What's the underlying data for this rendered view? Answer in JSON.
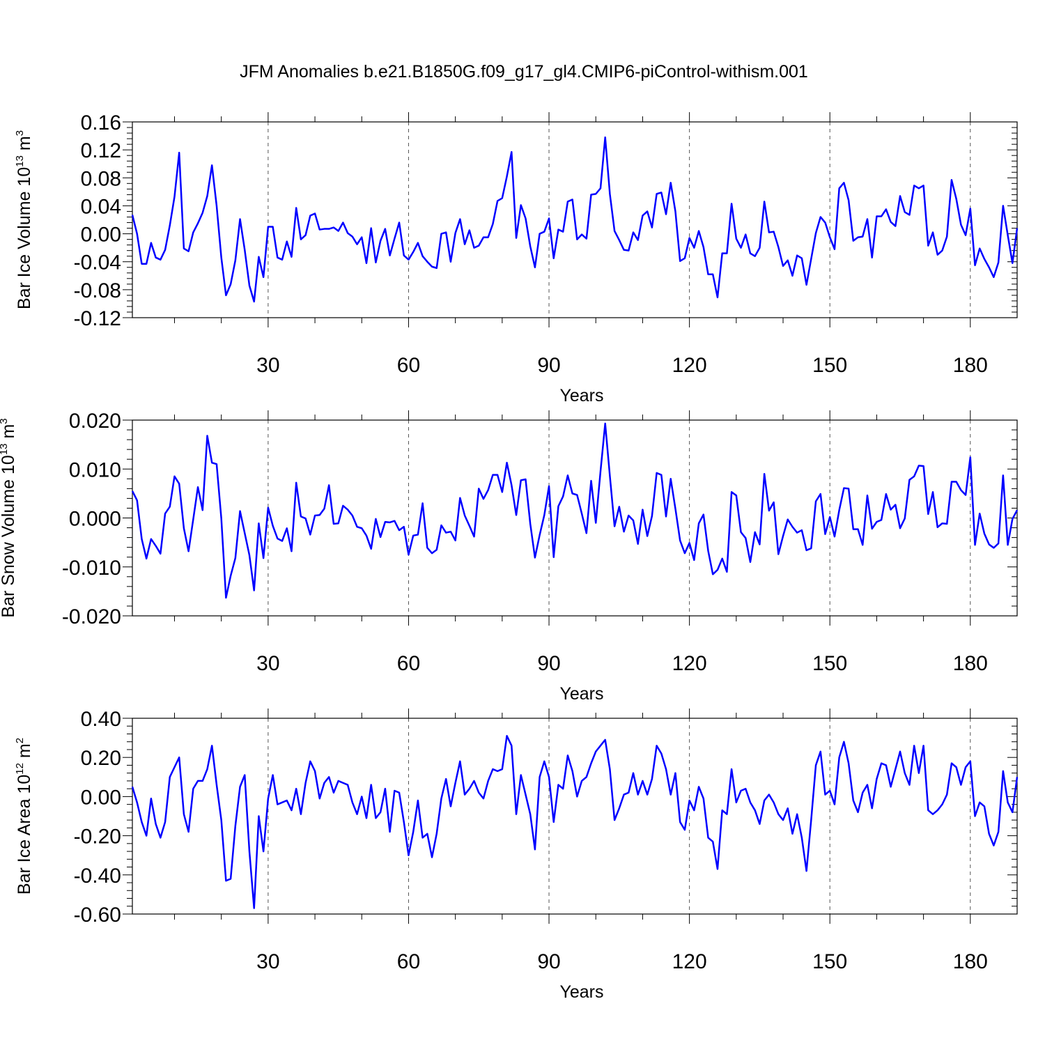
{
  "figure_title": "JFM Anomalies b.e21.B1850G.f09_g17_gl4.CMIP6-piControl-withism.001",
  "colors": {
    "series": "#0000ff"
  },
  "chart_data": [
    {
      "type": "line",
      "panel": "ice-volume",
      "xlabel": "Years",
      "ylabel": "Bar Ice Volume",
      "yunit_base": "10",
      "yunit_exp": "13",
      "yunit_symbol": "m",
      "yunit_symbol_exp": "3",
      "xlim": [
        1,
        190
      ],
      "ylim": [
        -0.12,
        0.16
      ],
      "xticks": [
        30,
        60,
        90,
        120,
        150,
        180
      ],
      "xtick_labels": [
        "30",
        "60",
        "90",
        "120",
        "150",
        "180"
      ],
      "yticks": [
        -0.12,
        -0.08,
        -0.04,
        0.0,
        0.04,
        0.08,
        0.12,
        0.16
      ],
      "ytick_labels": [
        "-0.12",
        "-0.08",
        "-0.04",
        "0.00",
        "0.04",
        "0.08",
        "0.12",
        "0.16"
      ],
      "grid": "dashed vertical at x ticks",
      "series": [
        {
          "name": "Bar Ice Volume",
          "values": [
            0.027,
            0.0,
            -0.043,
            -0.043,
            -0.013,
            -0.034,
            -0.037,
            -0.023,
            0.012,
            0.053,
            0.116,
            -0.021,
            -0.025,
            0.002,
            0.015,
            0.03,
            0.054,
            0.098,
            0.04,
            -0.034,
            -0.088,
            -0.072,
            -0.038,
            0.021,
            -0.023,
            -0.074,
            -0.097,
            -0.033,
            -0.062,
            0.01,
            0.01,
            -0.034,
            -0.037,
            -0.011,
            -0.033,
            0.037,
            -0.008,
            -0.002,
            0.026,
            0.029,
            0.006,
            0.007,
            0.007,
            0.009,
            0.004,
            0.016,
            0.001,
            -0.004,
            -0.015,
            -0.005,
            -0.042,
            0.008,
            -0.041,
            -0.01,
            0.007,
            -0.031,
            -0.007,
            0.016,
            -0.031,
            -0.037,
            -0.026,
            -0.013,
            -0.032,
            -0.04,
            -0.047,
            -0.049,
            0.0,
            0.002,
            -0.04,
            0.001,
            0.021,
            -0.015,
            0.005,
            -0.02,
            -0.017,
            -0.005,
            -0.005,
            0.014,
            0.047,
            0.051,
            0.082,
            0.117,
            -0.006,
            0.041,
            0.022,
            -0.018,
            -0.048,
            0.0,
            0.003,
            0.022,
            -0.035,
            0.006,
            0.003,
            0.046,
            0.049,
            -0.008,
            -0.001,
            -0.007,
            0.056,
            0.057,
            0.065,
            0.138,
            0.057,
            0.004,
            -0.009,
            -0.023,
            -0.024,
            0.002,
            -0.009,
            0.026,
            0.032,
            0.009,
            0.057,
            0.059,
            0.028,
            0.073,
            0.032,
            -0.039,
            -0.035,
            -0.006,
            -0.02,
            0.004,
            -0.019,
            -0.058,
            -0.058,
            -0.091,
            -0.028,
            -0.028,
            0.043,
            -0.007,
            -0.02,
            -0.001,
            -0.028,
            -0.032,
            -0.02,
            0.046,
            0.002,
            0.003,
            -0.019,
            -0.046,
            -0.038,
            -0.06,
            -0.031,
            -0.035,
            -0.073,
            -0.036,
            0.001,
            0.024,
            0.016,
            -0.005,
            -0.022,
            0.065,
            0.073,
            0.048,
            -0.01,
            -0.005,
            -0.004,
            0.021,
            -0.034,
            0.025,
            0.025,
            0.035,
            0.017,
            0.011,
            0.054,
            0.031,
            0.027,
            0.069,
            0.065,
            0.069,
            -0.017,
            0.002,
            -0.03,
            -0.024,
            -0.004,
            0.077,
            0.05,
            0.013,
            -0.002,
            0.036,
            -0.045,
            -0.021,
            -0.036,
            -0.048,
            -0.062,
            -0.041,
            0.04,
            -0.002,
            -0.042,
            0.008
          ]
        }
      ]
    },
    {
      "type": "line",
      "panel": "snow-volume",
      "xlabel": "Years",
      "ylabel": "Bar Snow Volume",
      "yunit_base": "10",
      "yunit_exp": "13",
      "yunit_symbol": "m",
      "yunit_symbol_exp": "3",
      "xlim": [
        1,
        190
      ],
      "ylim": [
        -0.02,
        0.02
      ],
      "xticks": [
        30,
        60,
        90,
        120,
        150,
        180
      ],
      "xtick_labels": [
        "30",
        "60",
        "90",
        "120",
        "150",
        "180"
      ],
      "yticks": [
        -0.02,
        -0.01,
        0.0,
        0.01,
        0.02
      ],
      "ytick_labels": [
        "-0.020",
        "-0.010",
        "0.000",
        "0.010",
        "0.020"
      ],
      "grid": "dashed vertical at x ticks",
      "series": [
        {
          "name": "Bar Snow Volume",
          "values": [
            0.0055,
            0.0036,
            -0.0043,
            -0.0083,
            -0.0043,
            -0.0057,
            -0.0073,
            0.0009,
            0.0023,
            0.0085,
            0.007,
            -0.0021,
            -0.0068,
            -0.0003,
            0.0063,
            0.0016,
            0.0168,
            0.0113,
            0.011,
            -0.0001,
            -0.0163,
            -0.0118,
            -0.0082,
            0.0014,
            -0.0031,
            -0.0076,
            -0.0148,
            -0.0011,
            -0.0082,
            0.0021,
            -0.0016,
            -0.0042,
            -0.0047,
            -0.0021,
            -0.0068,
            0.0072,
            0.0003,
            -0.0001,
            -0.0034,
            0.0005,
            0.0006,
            0.0019,
            0.0067,
            -0.0012,
            -0.0011,
            0.0025,
            0.0017,
            0.0005,
            -0.0018,
            -0.0021,
            -0.0036,
            -0.0063,
            -0.0002,
            -0.0039,
            -0.0008,
            -0.0009,
            -0.0006,
            -0.0025,
            -0.0018,
            -0.0075,
            -0.0036,
            -0.0034,
            0.003,
            -0.0061,
            -0.0072,
            -0.0065,
            -0.0015,
            -0.003,
            -0.0028,
            -0.0046,
            0.0041,
            0.0005,
            -0.0016,
            -0.0038,
            0.006,
            0.0039,
            0.0057,
            0.0088,
            0.0088,
            0.0053,
            0.0113,
            0.0067,
            0.0006,
            0.0077,
            0.0079,
            -0.0012,
            -0.0081,
            -0.0035,
            0.0006,
            0.0065,
            -0.008,
            0.0024,
            0.0044,
            0.0087,
            0.005,
            0.0047,
            0.0009,
            -0.0031,
            0.0076,
            -0.001,
            0.0095,
            0.0193,
            0.0086,
            -0.0017,
            0.0023,
            -0.0028,
            0.0005,
            -0.0005,
            -0.0053,
            0.0017,
            -0.0037,
            0.0004,
            0.0092,
            0.0088,
            0.0003,
            0.008,
            0.0019,
            -0.0046,
            -0.0072,
            -0.0051,
            -0.0086,
            -0.0011,
            0.0007,
            -0.0067,
            -0.0115,
            -0.0106,
            -0.0083,
            -0.011,
            0.0053,
            0.0046,
            -0.0029,
            -0.0041,
            -0.009,
            -0.0029,
            -0.0054,
            0.009,
            0.0015,
            0.0032,
            -0.0074,
            -0.0037,
            -0.0003,
            -0.0018,
            -0.003,
            -0.0025,
            -0.0066,
            -0.0062,
            0.0034,
            0.0049,
            -0.0033,
            0.0002,
            -0.0038,
            0.0016,
            0.0061,
            0.006,
            -0.0023,
            -0.0023,
            -0.0055,
            0.0046,
            -0.0022,
            -0.0008,
            -0.0004,
            0.0049,
            0.0017,
            0.0027,
            -0.0021,
            -0.0001,
            0.0078,
            0.0085,
            0.0107,
            0.0106,
            0.0008,
            0.0053,
            -0.0019,
            -0.0011,
            -0.0012,
            0.0074,
            0.0074,
            0.0057,
            0.0047,
            0.0124,
            -0.0055,
            0.0009,
            -0.0032,
            -0.0054,
            -0.0061,
            -0.0052,
            0.0087,
            -0.0055,
            -0.0002,
            0.0016
          ]
        }
      ]
    },
    {
      "type": "line",
      "panel": "ice-area",
      "xlabel": "Years",
      "ylabel": "Bar Ice Area",
      "yunit_base": "10",
      "yunit_exp": "12",
      "yunit_symbol": "m",
      "yunit_symbol_exp": "2",
      "xlim": [
        1,
        190
      ],
      "ylim": [
        -0.6,
        0.4
      ],
      "xticks": [
        30,
        60,
        90,
        120,
        150,
        180
      ],
      "xtick_labels": [
        "30",
        "60",
        "90",
        "120",
        "150",
        "180"
      ],
      "yticks": [
        -0.6,
        -0.4,
        -0.2,
        0.0,
        0.2,
        0.4
      ],
      "ytick_labels": [
        "-0.60",
        "-0.40",
        "-0.20",
        "0.00",
        "0.20",
        "0.40"
      ],
      "grid": "dashed vertical at x ticks",
      "series": [
        {
          "name": "Bar Ice Area",
          "values": [
            0.05,
            -0.03,
            -0.13,
            -0.2,
            -0.01,
            -0.14,
            -0.21,
            -0.13,
            0.1,
            0.15,
            0.2,
            -0.09,
            -0.18,
            0.04,
            0.08,
            0.08,
            0.14,
            0.26,
            0.06,
            -0.12,
            -0.43,
            -0.42,
            -0.15,
            0.05,
            0.11,
            -0.28,
            -0.57,
            -0.1,
            -0.28,
            -0.01,
            0.11,
            -0.04,
            -0.03,
            -0.02,
            -0.07,
            0.04,
            -0.09,
            0.07,
            0.18,
            0.13,
            -0.01,
            0.07,
            0.1,
            0.02,
            0.08,
            0.07,
            0.06,
            -0.03,
            -0.09,
            0.0,
            -0.11,
            0.06,
            -0.11,
            -0.08,
            0.04,
            -0.18,
            0.03,
            0.02,
            -0.13,
            -0.3,
            -0.18,
            -0.02,
            -0.21,
            -0.19,
            -0.31,
            -0.19,
            -0.01,
            0.09,
            -0.05,
            0.07,
            0.18,
            0.01,
            0.04,
            0.08,
            0.02,
            -0.01,
            0.08,
            0.14,
            0.13,
            0.14,
            0.31,
            0.26,
            -0.09,
            0.11,
            0.01,
            -0.09,
            -0.27,
            0.1,
            0.18,
            0.1,
            -0.13,
            0.06,
            0.04,
            0.21,
            0.13,
            0.0,
            0.08,
            0.1,
            0.17,
            0.23,
            0.26,
            0.29,
            0.14,
            -0.12,
            -0.06,
            0.01,
            0.02,
            0.12,
            0.01,
            0.08,
            0.01,
            0.09,
            0.26,
            0.22,
            0.14,
            0.01,
            0.12,
            -0.13,
            -0.17,
            -0.02,
            -0.07,
            0.05,
            -0.01,
            -0.21,
            -0.23,
            -0.37,
            -0.07,
            -0.09,
            0.14,
            -0.03,
            0.03,
            0.04,
            -0.03,
            -0.07,
            -0.14,
            -0.02,
            0.01,
            -0.03,
            -0.09,
            -0.12,
            -0.06,
            -0.19,
            -0.09,
            -0.21,
            -0.38,
            -0.12,
            0.16,
            0.23,
            0.01,
            0.03,
            -0.04,
            0.2,
            0.28,
            0.17,
            -0.02,
            -0.08,
            0.02,
            0.06,
            -0.06,
            0.09,
            0.17,
            0.16,
            0.05,
            0.14,
            0.23,
            0.12,
            0.06,
            0.26,
            0.12,
            0.26,
            -0.07,
            -0.09,
            -0.07,
            -0.04,
            0.01,
            0.17,
            0.15,
            0.06,
            0.15,
            0.18,
            -0.1,
            -0.03,
            -0.05,
            -0.19,
            -0.25,
            -0.18,
            0.13,
            -0.03,
            -0.08,
            0.1
          ]
        }
      ]
    }
  ]
}
